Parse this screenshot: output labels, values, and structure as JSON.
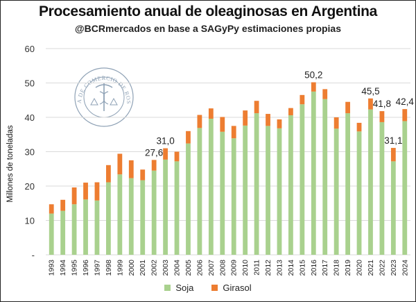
{
  "colors": {
    "soja": "#a9d18e",
    "girasol": "#ed7d31",
    "grid": "#d9d9d9",
    "logo": "#8ea1b5"
  },
  "logo": {
    "text": "BOLSA DE COMERCIO DE ROSARIO"
  },
  "chart_data": {
    "type": "bar",
    "stacked": true,
    "title": "Procesamiento anual de oleaginosas en Argentina",
    "subtitle": "@BCRmercados en base a SAGyPy estimaciones propias",
    "ylabel": "Millones de  toneladas",
    "ylim": [
      0,
      60
    ],
    "yticks": [
      "-",
      "10",
      "20",
      "30",
      "40",
      "50",
      "60"
    ],
    "grid": true,
    "legend_position": "bottom",
    "categories": [
      "1993",
      "1994",
      "1995",
      "1996",
      "1997",
      "1998",
      "1999",
      "2000",
      "2001",
      "2002",
      "2003",
      "2004",
      "2005",
      "2006",
      "2007",
      "2008",
      "2009",
      "2010",
      "2011",
      "2012",
      "2013",
      "2014",
      "2015",
      "2016",
      "2017",
      "2018",
      "2019",
      "2020",
      "2021",
      "2022",
      "2023",
      "2024"
    ],
    "series": [
      {
        "name": "Soja",
        "values": [
          12.0,
          12.8,
          14.7,
          16.1,
          15.8,
          21.1,
          23.4,
          22.3,
          21.7,
          24.5,
          27.7,
          27.2,
          32.4,
          36.9,
          39.6,
          35.8,
          33.9,
          37.6,
          41.2,
          37.5,
          36.8,
          40.6,
          43.8,
          47.5,
          45.3,
          36.7,
          41.2,
          35.9,
          42.3,
          38.6,
          27.2,
          38.9
        ]
      },
      {
        "name": "Girasol",
        "values": [
          2.7,
          3.2,
          4.9,
          4.9,
          5.3,
          5.0,
          6.0,
          5.2,
          3.1,
          3.1,
          3.3,
          2.8,
          3.6,
          3.8,
          3.0,
          4.3,
          3.6,
          4.4,
          3.6,
          3.5,
          2.6,
          2.1,
          2.7,
          2.7,
          2.9,
          3.3,
          3.3,
          2.5,
          3.2,
          3.2,
          3.9,
          3.5
        ]
      }
    ],
    "data_labels": [
      {
        "category": "2002",
        "text": "27,6"
      },
      {
        "category": "2003",
        "text": "31,0"
      },
      {
        "category": "2016",
        "text": "50,2"
      },
      {
        "category": "2021",
        "text": "45,5"
      },
      {
        "category": "2022",
        "text": "41,8"
      },
      {
        "category": "2023",
        "text": "31,1"
      },
      {
        "category": "2024",
        "text": "42,4"
      }
    ]
  }
}
